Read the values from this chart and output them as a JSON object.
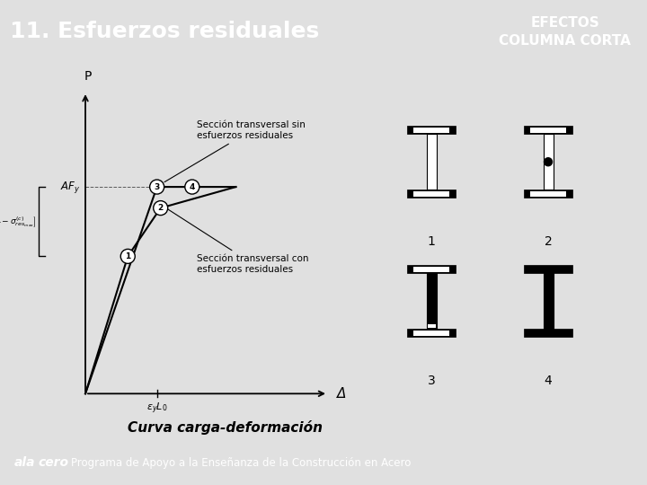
{
  "title": "11. Esfuerzos residuales",
  "title_right": "EFECTOS\nCOLUMNA CORTA",
  "bg_header": "#1a2e52",
  "bg_main": "#e0e0e0",
  "bg_footer": "#9a9a9a",
  "footer_text": "Programa de Apoyo a la Enseñanza de la Construcción en Acero",
  "bottom_label": "Curva carga-deformación",
  "annotation1": "Sección transversal sin\nesfuerzos residuales",
  "annotation2": "Sección transversal con\nesfuerzos residuales",
  "label_P": "P",
  "label_Delta": "Δ",
  "label_AFy": "AFy",
  "label_eyL0": "εyL₀",
  "i_labels": [
    "1",
    "2",
    "3",
    "4"
  ]
}
